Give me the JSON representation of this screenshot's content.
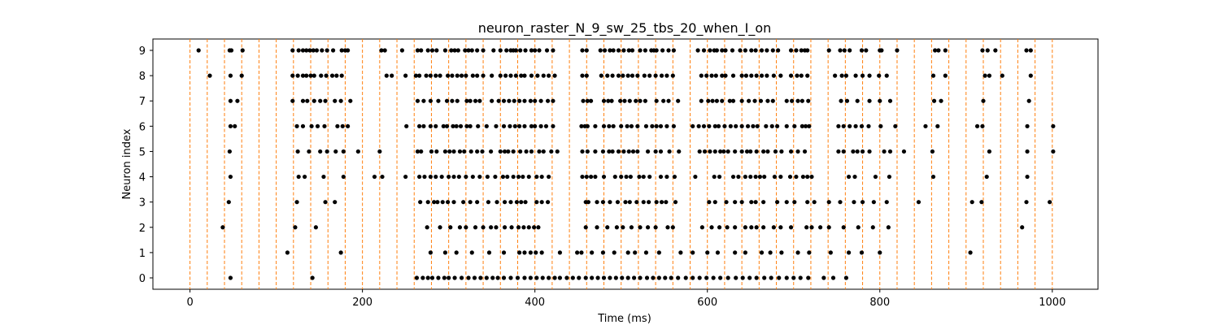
{
  "chart_data": {
    "type": "scatter",
    "title": "neuron_raster_N_9_sw_25_tbs_20_when_I_on",
    "xlabel": "Time (ms)",
    "ylabel": "Neuron index",
    "xlim": [
      -43,
      1053
    ],
    "ylim": [
      -0.45,
      9.45
    ],
    "xticks": [
      0,
      200,
      400,
      600,
      800,
      1000
    ],
    "yticks": [
      0,
      1,
      2,
      3,
      4,
      5,
      6,
      7,
      8,
      9
    ],
    "marker_color": "#000000",
    "vlines": {
      "color": "#ff7f0e",
      "style": "dashed",
      "positions": [
        0,
        20,
        40,
        60,
        80,
        100,
        120,
        140,
        160,
        180,
        200,
        220,
        240,
        260,
        280,
        300,
        320,
        340,
        360,
        380,
        400,
        420,
        440,
        460,
        480,
        500,
        520,
        540,
        560,
        580,
        600,
        620,
        640,
        660,
        680,
        700,
        720,
        740,
        760,
        780,
        800,
        820,
        840,
        860,
        880,
        900,
        920,
        940,
        960,
        980,
        1000
      ]
    },
    "series": [
      {
        "neuron": 9,
        "spikes": [
          10,
          46,
          48,
          61,
          119,
          126,
          131,
          135,
          139,
          143,
          147,
          153,
          159,
          166,
          176,
          180,
          183,
          222,
          226,
          246,
          264,
          268,
          276,
          281,
          286,
          296,
          303,
          307,
          311,
          319,
          323,
          327,
          333,
          340,
          352,
          360,
          367,
          372,
          375,
          378,
          383,
          389,
          396,
          400,
          405,
          414,
          421,
          455,
          460,
          476,
          481,
          487,
          491,
          497,
          503,
          509,
          513,
          522,
          528,
          535,
          538,
          541,
          548,
          555,
          561,
          589,
          596,
          603,
          608,
          611,
          617,
          621,
          629,
          638,
          644,
          651,
          656,
          663,
          669,
          676,
          682,
          697,
          703,
          709,
          713,
          716,
          741,
          754,
          759,
          765,
          779,
          784,
          800,
          802,
          820,
          864,
          868,
          876,
          919,
          925,
          934,
          970,
          975
        ]
      },
      {
        "neuron": 8,
        "spikes": [
          23,
          47,
          60,
          119,
          125,
          131,
          135,
          140,
          144,
          152,
          158,
          165,
          170,
          176,
          228,
          234,
          250,
          262,
          266,
          274,
          279,
          285,
          290,
          299,
          304,
          310,
          315,
          320,
          328,
          333,
          340,
          350,
          360,
          366,
          372,
          378,
          384,
          388,
          396,
          403,
          410,
          416,
          423,
          455,
          460,
          477,
          484,
          490,
          497,
          502,
          508,
          513,
          519,
          527,
          533,
          540,
          547,
          553,
          560,
          593,
          599,
          605,
          610,
          617,
          621,
          630,
          640,
          645,
          651,
          657,
          663,
          669,
          677,
          685,
          697,
          704,
          709,
          716,
          748,
          756,
          761,
          772,
          780,
          788,
          799,
          808,
          862,
          876,
          922,
          927,
          942,
          975
        ]
      },
      {
        "neuron": 7,
        "spikes": [
          47,
          55,
          119,
          131,
          136,
          144,
          151,
          157,
          168,
          175,
          186,
          264,
          271,
          279,
          288,
          298,
          304,
          310,
          321,
          325,
          331,
          336,
          350,
          358,
          364,
          370,
          376,
          382,
          388,
          395,
          400,
          407,
          415,
          421,
          456,
          461,
          465,
          480,
          485,
          489,
          499,
          504,
          510,
          517,
          522,
          528,
          541,
          549,
          555,
          566,
          593,
          601,
          606,
          611,
          617,
          626,
          630,
          640,
          648,
          655,
          662,
          670,
          676,
          692,
          698,
          705,
          710,
          717,
          755,
          762,
          774,
          788,
          800,
          812,
          863,
          871,
          920,
          973
        ]
      },
      {
        "neuron": 6,
        "spikes": [
          47,
          52,
          124,
          131,
          141,
          148,
          156,
          171,
          177,
          183,
          251,
          266,
          271,
          279,
          285,
          294,
          298,
          305,
          309,
          314,
          321,
          325,
          334,
          344,
          355,
          364,
          371,
          377,
          382,
          388,
          396,
          400,
          407,
          413,
          421,
          454,
          458,
          461,
          470,
          480,
          486,
          491,
          500,
          507,
          512,
          519,
          529,
          536,
          541,
          546,
          553,
          561,
          583,
          590,
          596,
          602,
          609,
          613,
          620,
          627,
          633,
          640,
          647,
          653,
          658,
          668,
          675,
          681,
          692,
          701,
          710,
          714,
          718,
          752,
          758,
          765,
          772,
          779,
          787,
          801,
          818,
          853,
          867,
          913,
          919,
          971,
          1001
        ]
      },
      {
        "neuron": 5,
        "spikes": [
          46,
          125,
          138,
          151,
          159,
          169,
          178,
          195,
          220,
          264,
          268,
          280,
          286,
          296,
          301,
          306,
          313,
          318,
          326,
          333,
          339,
          349,
          360,
          365,
          369,
          375,
          383,
          390,
          396,
          405,
          410,
          419,
          426,
          455,
          461,
          470,
          479,
          486,
          490,
          497,
          503,
          509,
          514,
          519,
          531,
          540,
          546,
          556,
          567,
          591,
          597,
          603,
          609,
          615,
          619,
          624,
          632,
          640,
          646,
          650,
          657,
          665,
          670,
          679,
          686,
          697,
          705,
          713,
          752,
          758,
          769,
          774,
          780,
          788,
          805,
          812,
          828,
          861,
          927,
          971,
          1001
        ]
      },
      {
        "neuron": 4,
        "spikes": [
          47,
          126,
          133,
          155,
          178,
          214,
          223,
          250,
          266,
          272,
          279,
          285,
          292,
          300,
          306,
          312,
          320,
          328,
          336,
          345,
          354,
          363,
          368,
          375,
          381,
          386,
          393,
          402,
          408,
          416,
          455,
          460,
          465,
          470,
          480,
          493,
          500,
          506,
          511,
          521,
          526,
          533,
          546,
          553,
          562,
          586,
          608,
          614,
          630,
          636,
          644,
          650,
          656,
          661,
          666,
          678,
          685,
          696,
          703,
          711,
          716,
          721,
          764,
          771,
          795,
          811,
          862,
          924,
          971
        ]
      },
      {
        "neuron": 3,
        "spikes": [
          45,
          124,
          157,
          168,
          267,
          276,
          283,
          287,
          293,
          299,
          306,
          317,
          325,
          333,
          346,
          356,
          365,
          372,
          379,
          384,
          389,
          402,
          408,
          415,
          459,
          462,
          472,
          479,
          487,
          496,
          505,
          510,
          518,
          526,
          532,
          541,
          547,
          552,
          563,
          602,
          609,
          622,
          632,
          640,
          651,
          656,
          665,
          681,
          692,
          701,
          716,
          724,
          741,
          754,
          770,
          780,
          793,
          808,
          845,
          907,
          918,
          970,
          997
        ]
      },
      {
        "neuron": 2,
        "spikes": [
          38,
          122,
          146,
          275,
          290,
          302,
          313,
          320,
          331,
          340,
          349,
          355,
          365,
          373,
          381,
          387,
          393,
          399,
          404,
          459,
          472,
          484,
          495,
          502,
          512,
          522,
          531,
          540,
          554,
          560,
          594,
          605,
          614,
          623,
          632,
          644,
          651,
          657,
          665,
          677,
          685,
          697,
          715,
          721,
          731,
          741,
          758,
          775,
          792,
          810,
          965
        ]
      },
      {
        "neuron": 1,
        "spikes": [
          113,
          175,
          279,
          296,
          309,
          327,
          347,
          364,
          382,
          388,
          395,
          401,
          408,
          429,
          449,
          454,
          466,
          479,
          492,
          508,
          516,
          529,
          544,
          569,
          583,
          600,
          612,
          632,
          644,
          663,
          673,
          686,
          705,
          718,
          743,
          764,
          779,
          800,
          905
        ]
      },
      {
        "neuron": 0,
        "spikes": [
          47,
          142,
          263,
          270,
          276,
          281,
          288,
          295,
          300,
          307,
          315,
          323,
          330,
          337,
          344,
          351,
          357,
          364,
          372,
          380,
          388,
          395,
          402,
          409,
          416,
          423,
          429,
          437,
          444,
          451,
          459,
          466,
          473,
          480,
          487,
          494,
          501,
          508,
          515,
          522,
          530,
          537,
          544,
          551,
          558,
          566,
          575,
          583,
          591,
          599,
          607,
          615,
          624,
          633,
          641,
          649,
          657,
          666,
          674,
          683,
          692,
          700,
          708,
          717,
          735,
          746,
          761
        ]
      }
    ]
  }
}
